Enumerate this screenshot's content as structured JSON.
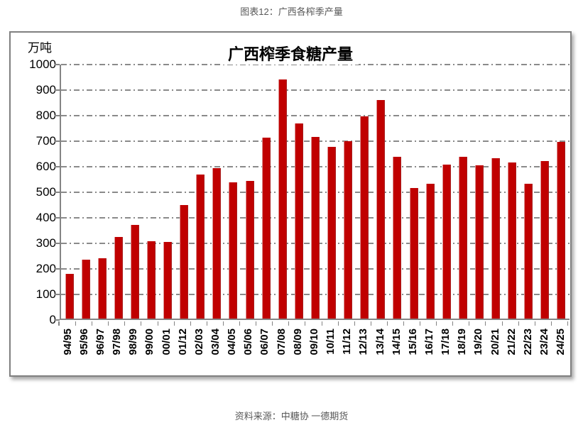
{
  "page": {
    "header_title": "图表12：广西各榨季产量",
    "source_text": "资料来源：中糖协 一德期货"
  },
  "chart_data": {
    "type": "bar",
    "title": "广西榨季食糖产量",
    "unit_label": "万吨",
    "xlabel": "",
    "ylabel": "万吨",
    "ylim": [
      0,
      1000
    ],
    "ytick_interval": 100,
    "ytick_labels": [
      "0",
      "100",
      "200",
      "300",
      "400",
      "500",
      "600",
      "700",
      "800",
      "900",
      "1000"
    ],
    "grid": "horizontal dash-dot",
    "legend": "none",
    "bar_color": "#C00000",
    "grid_color": "#8A8A8A",
    "axis_color": "#848484",
    "categories": [
      "94/95",
      "95/96",
      "96/97",
      "97/98",
      "98/99",
      "99/00",
      "00/01",
      "01/12",
      "02/03",
      "03/04",
      "04/05",
      "05/06",
      "06/07",
      "07/08",
      "08/09",
      "09/10",
      "10/11",
      "11/12",
      "12/13",
      "13/14",
      "14/15",
      "15/16",
      "16/17",
      "17/18",
      "18/19",
      "19/20",
      "20/21",
      "21/22",
      "22/23",
      "23/24",
      "24/25"
    ],
    "values": [
      175,
      230,
      235,
      320,
      368,
      302,
      300,
      445,
      565,
      590,
      533,
      538,
      709,
      937,
      763,
      710,
      672,
      695,
      791,
      856,
      634,
      511,
      529,
      602,
      634,
      600,
      629,
      612,
      527,
      618,
      692
    ]
  }
}
